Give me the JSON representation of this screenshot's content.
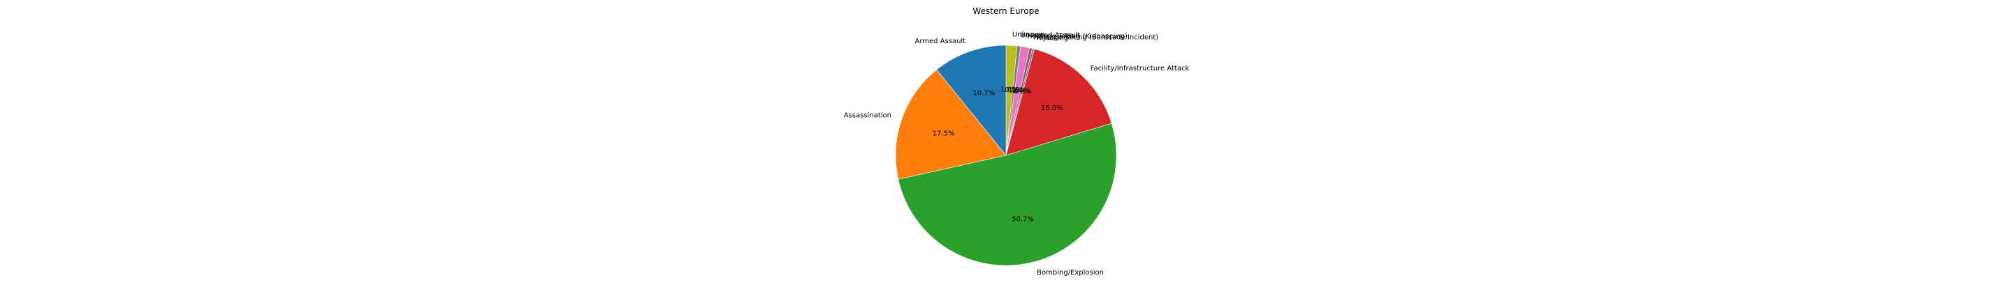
{
  "chart_data": {
    "type": "pie",
    "title": "Western Europe",
    "categories": [
      "Unknown",
      "Unarmed Assault",
      "Hostage Taking (Kidnapping)",
      "Hostage Taking (Barricade Incident)",
      "Hijacking",
      "Facility/Infrastructure Attack",
      "Bombing/Explosion",
      "Assassination",
      "Armed Assault"
    ],
    "values": [
      1.6,
      0.5,
      1.3,
      0.4,
      0.3,
      16.0,
      50.7,
      17.5,
      10.7
    ],
    "value_labels": [
      "1.6%",
      "0.5%",
      "1.3%",
      "0.4%",
      "0.3%",
      "16.0%",
      "50.7%",
      "17.5%",
      "10.7%"
    ],
    "colors": [
      "#bcbd22",
      "#7f7f7f",
      "#e377c2",
      "#8c564b",
      "#9467bd",
      "#d62728",
      "#2ca02c",
      "#ff7f0e",
      "#1f77b4"
    ],
    "start_angle_deg": 90,
    "direction": "clockwise",
    "legend": "none"
  }
}
